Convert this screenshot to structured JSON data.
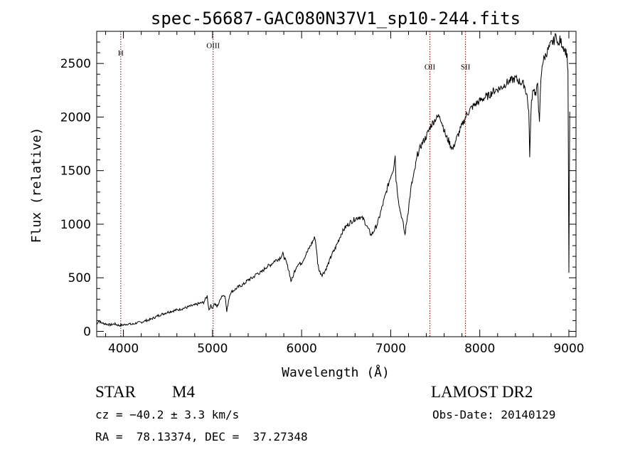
{
  "chart_data": {
    "type": "line",
    "title": "spec-56687-GAC080N37V1_sp10-244.fits",
    "xlabel": "Wavelength (Å)",
    "ylabel": "Flux (relative)",
    "xlim": [
      3700,
      9080
    ],
    "ylim": [
      -50,
      2800
    ],
    "x_ticks": [
      4000,
      5000,
      6000,
      7000,
      8000,
      9000
    ],
    "y_ticks": [
      0,
      500,
      1000,
      1500,
      2000,
      2500
    ],
    "grid": false,
    "series": [
      {
        "x": [
          3700,
          3720,
          3750,
          3800,
          3850,
          3900,
          3950,
          4000,
          4050,
          4100,
          4150,
          4200,
          4250,
          4300,
          4350,
          4400,
          4450,
          4500,
          4550,
          4600,
          4650,
          4700,
          4750,
          4800,
          4850,
          4900,
          4920,
          4940,
          4960,
          4980,
          5000,
          5020,
          5050,
          5080,
          5100,
          5140,
          5160,
          5180,
          5200,
          5250,
          5300,
          5350,
          5400,
          5450,
          5500,
          5550,
          5600,
          5650,
          5700,
          5750,
          5790,
          5830,
          5860,
          5880,
          5900,
          5920,
          5950,
          6000,
          6050,
          6100,
          6150,
          6165,
          6180,
          6200,
          6230,
          6260,
          6300,
          6340,
          6370,
          6400,
          6450,
          6500,
          6550,
          6600,
          6650,
          6700,
          6750,
          6780,
          6800,
          6850,
          6900,
          6950,
          7000,
          7030,
          7050,
          7060,
          7080,
          7100,
          7120,
          7140,
          7160,
          7200,
          7230,
          7270,
          7300,
          7350,
          7400,
          7430,
          7450,
          7500,
          7530,
          7550,
          7600,
          7620,
          7650,
          7680,
          7700,
          7720,
          7750,
          7780,
          7800,
          7850,
          7900,
          7950,
          8000,
          8050,
          8100,
          8150,
          8200,
          8250,
          8300,
          8350,
          8400,
          8450,
          8500,
          8530,
          8550,
          8560,
          8580,
          8600,
          8630,
          8650,
          8660,
          8670,
          8680,
          8700,
          8750,
          8800,
          8840,
          8860,
          8880,
          8900,
          8950,
          8980,
          8990,
          9000,
          9010
        ],
        "y": [
          60,
          100,
          80,
          70,
          60,
          70,
          55,
          60,
          70,
          65,
          80,
          85,
          100,
          110,
          130,
          150,
          165,
          180,
          190,
          200,
          210,
          220,
          235,
          245,
          260,
          270,
          300,
          330,
          200,
          240,
          220,
          260,
          230,
          280,
          330,
          340,
          180,
          290,
          360,
          390,
          420,
          440,
          480,
          500,
          540,
          550,
          600,
          620,
          660,
          680,
          720,
          640,
          560,
          470,
          500,
          560,
          620,
          640,
          720,
          800,
          880,
          780,
          640,
          560,
          530,
          560,
          630,
          720,
          760,
          820,
          920,
          980,
          1020,
          1050,
          1070,
          1040,
          950,
          900,
          920,
          1000,
          1150,
          1300,
          1450,
          1520,
          1640,
          1420,
          1280,
          1150,
          1080,
          1000,
          900,
          1150,
          1350,
          1500,
          1650,
          1750,
          1820,
          1880,
          1920,
          1980,
          2000,
          2020,
          1880,
          1820,
          1780,
          1720,
          1700,
          1760,
          1820,
          1880,
          1920,
          2020,
          2080,
          2120,
          2150,
          2180,
          2200,
          2240,
          2260,
          2280,
          2320,
          2340,
          2360,
          2330,
          2300,
          2200,
          2050,
          1650,
          2150,
          2280,
          2200,
          2320,
          2080,
          1930,
          2250,
          2500,
          2600,
          2680,
          2720,
          2780,
          2650,
          2720,
          2640,
          2580,
          2400,
          540,
          2050
        ]
      }
    ],
    "reference_lines": [
      {
        "label": "H",
        "x": 3970
      },
      {
        "label": "OIII",
        "x": 5007
      },
      {
        "label": "OII",
        "x": 7440
      },
      {
        "label": "SII",
        "x": 7840
      }
    ],
    "reference_label_flux": [
      2600,
      2670,
      2470,
      2470
    ]
  },
  "info": {
    "class_label": "STAR",
    "subclass": "M4",
    "cz": "cz = −40.2 ± 3.3 km/s",
    "coords": "RA =  78.13374, DEC =  37.27348",
    "survey": "LAMOST DR2",
    "obs_date": "Obs-Date: 20140129"
  },
  "colors": {
    "spectrum": "#000000",
    "axes": "#000000",
    "reference_line": "#8b0000"
  }
}
